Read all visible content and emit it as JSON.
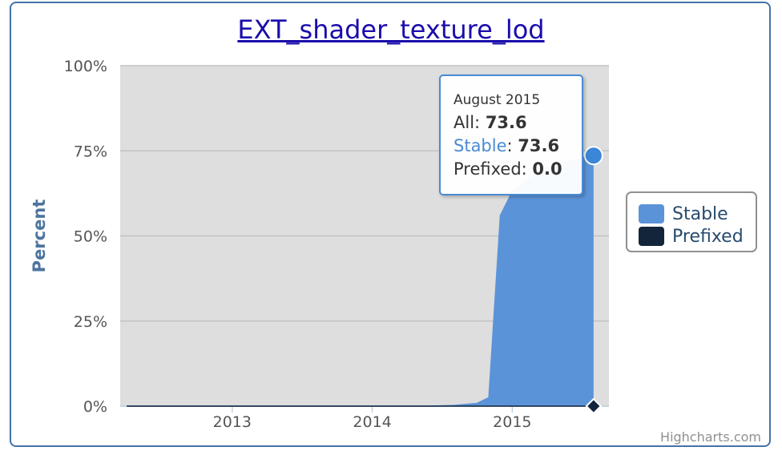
{
  "chart_data": {
    "type": "area",
    "title": "EXT_shader_texture_lod",
    "ylabel": "Percent",
    "xlabel": "",
    "x_ticks": [
      "2013",
      "2014",
      "2015"
    ],
    "y_ticks": [
      "0%",
      "25%",
      "50%",
      "75%",
      "100%"
    ],
    "ylim": [
      0,
      100
    ],
    "grid": true,
    "legend_position": "right",
    "series": [
      {
        "name": "Stable",
        "color": "#5b93d9",
        "x": [
          "2012-04",
          "2012-06",
          "2012-08",
          "2012-10",
          "2012-12",
          "2013-02",
          "2013-04",
          "2013-06",
          "2013-08",
          "2013-10",
          "2013-12",
          "2014-02",
          "2014-04",
          "2014-06",
          "2014-08",
          "2014-10",
          "2014-11",
          "2014-12",
          "2015-01",
          "2015-02",
          "2015-03",
          "2015-04",
          "2015-05",
          "2015-06",
          "2015-07",
          "2015-08"
        ],
        "values": [
          0,
          0,
          0,
          0,
          0,
          0,
          0,
          0,
          0,
          0,
          0,
          0,
          0,
          0,
          0.2,
          0.8,
          2.5,
          56,
          63,
          66,
          68,
          70,
          71,
          72,
          73,
          73.6
        ]
      },
      {
        "name": "Prefixed",
        "color": "#13253b",
        "x": [
          "2012-04",
          "2015-08"
        ],
        "values": [
          0,
          0
        ]
      }
    ],
    "tooltip": {
      "header": "August 2015",
      "rows": [
        {
          "label": "All",
          "value": "73.6"
        },
        {
          "label": "Stable",
          "value": "73.6"
        },
        {
          "label": "Prefixed",
          "value": "0.0"
        }
      ]
    },
    "credits": "Highcharts.com"
  },
  "colors": {
    "plot_background": "#dedede",
    "gridline": "#c2c2c2",
    "axis_label": "#4d759e",
    "tooltip_border": "#4a8bd4",
    "stable_label": "#4a8bd4"
  }
}
